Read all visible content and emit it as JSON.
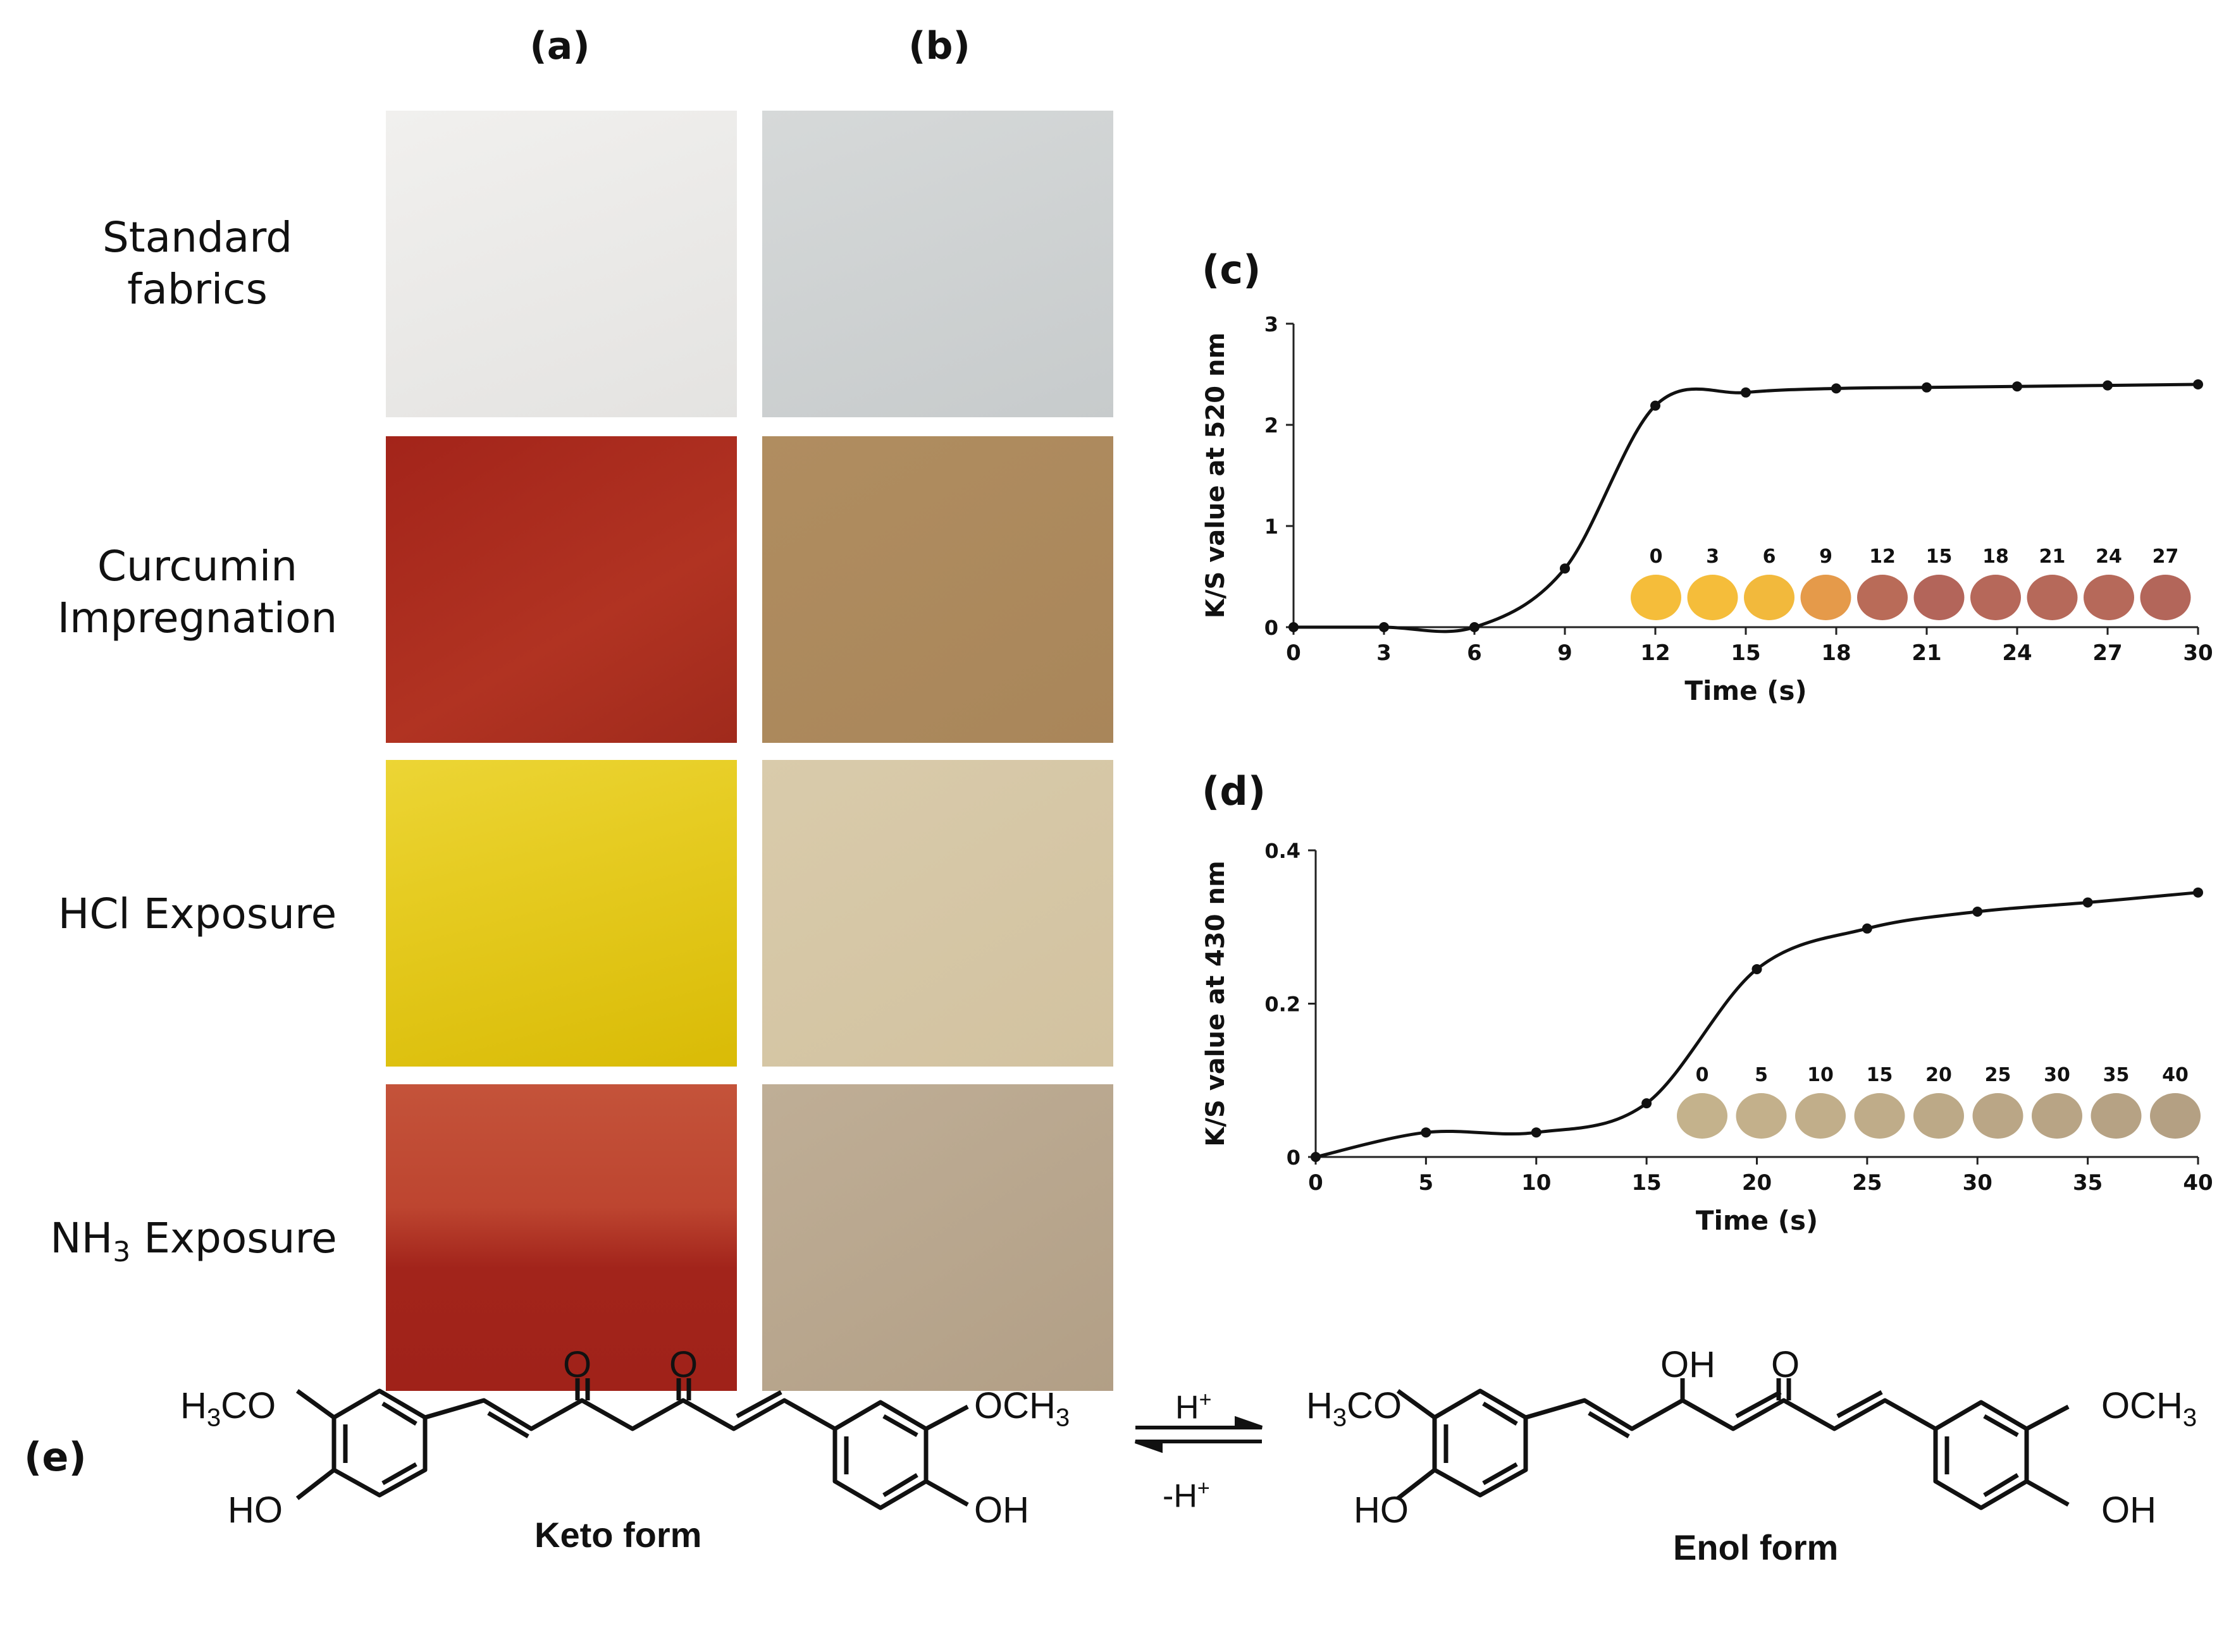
{
  "panel_a_label": "(a)",
  "panel_b_label": "(b)",
  "rows": [
    {
      "label_lines": [
        "Standard",
        "fabrics"
      ],
      "color_a": "#ebeae8",
      "color_b": "#cfd3d3"
    },
    {
      "label_lines": [
        "Curcumin",
        "Impregnation"
      ],
      "color_a": "#a9291d",
      "color_b": "#ad8a5e"
    },
    {
      "label_lines": [
        "HCl Exposure"
      ],
      "color_a": "#ddc112",
      "color_b": "#d6c7a6"
    },
    {
      "label_prefix": "NH",
      "label_sub": "3",
      "label_suffix": " Exposure",
      "color_a": "#b53a25",
      "color_b": "#b9a68d"
    }
  ],
  "chart_data": [
    {
      "panel": "(c)",
      "type": "line",
      "xlabel": "Time (s)",
      "ylabel": "K/S value at 520 nm",
      "xlim": [
        0,
        30
      ],
      "ylim": [
        0,
        3
      ],
      "xticks": [
        0,
        3,
        6,
        9,
        12,
        15,
        18,
        21,
        24,
        27,
        30
      ],
      "yticks": [
        0,
        1,
        2,
        3
      ],
      "x": [
        0,
        3,
        6,
        9,
        12,
        15,
        18,
        21,
        24,
        27,
        30
      ],
      "y": [
        0,
        0,
        0,
        0.58,
        2.19,
        2.32,
        2.36,
        2.37,
        2.38,
        2.39,
        2.4
      ],
      "inset_labels": [
        "0",
        "3",
        "6",
        "9",
        "12",
        "15",
        "18",
        "21",
        "24",
        "27"
      ],
      "inset_colors": [
        "#f5bd3a",
        "#f5bd3a",
        "#f2b93c",
        "#e59a4a",
        "#b96b58",
        "#b3655a",
        "#b6685a",
        "#b6695a",
        "#b6695a",
        "#b3665a"
      ]
    },
    {
      "panel": "(d)",
      "type": "line",
      "xlabel": "Time (s)",
      "ylabel": "K/S value at 430 nm",
      "xlim": [
        0,
        40
      ],
      "ylim": [
        0,
        0.4
      ],
      "xticks": [
        0,
        5,
        10,
        15,
        20,
        25,
        30,
        35,
        40
      ],
      "yticks": [
        0,
        0.2,
        0.4
      ],
      "x": [
        0,
        5,
        10,
        15,
        20,
        25,
        30,
        35,
        40
      ],
      "y": [
        0,
        0.032,
        0.032,
        0.07,
        0.245,
        0.298,
        0.32,
        0.332,
        0.345
      ],
      "inset_labels": [
        "0",
        "5",
        "10",
        "15",
        "20",
        "25",
        "30",
        "35",
        "40"
      ],
      "inset_colors": [
        "#c4b28c",
        "#c3b08b",
        "#c1ae8a",
        "#bfac89",
        "#bca987",
        "#baa686",
        "#b8a485",
        "#b6a284",
        "#b4a083"
      ]
    }
  ],
  "panel_e": {
    "label": "(e)",
    "keto_caption": "Keto form",
    "enol_caption": "Enol form",
    "arrow_top": "H",
    "arrow_bottom": "-H",
    "arrow_top_sup": "+",
    "arrow_bottom_sup": "+",
    "keto_O1": "O",
    "keto_O2": "O",
    "enol_OH": "OH",
    "enol_O": "O",
    "h3co_prefix": "H",
    "h3co_sub": "3",
    "h3co_suffix": "CO",
    "och3_prefix": "OCH",
    "och3_sub": "3",
    "ho": "HO",
    "oh": "OH"
  }
}
